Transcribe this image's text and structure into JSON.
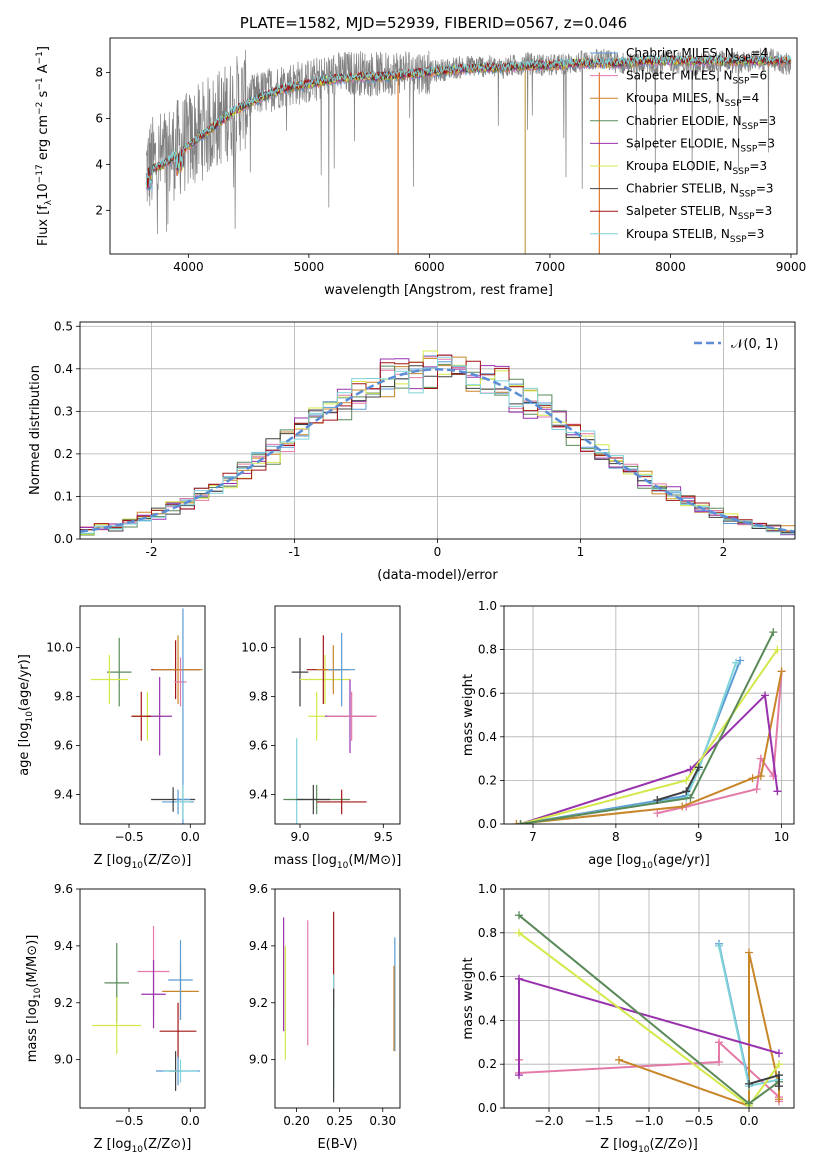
{
  "chart_data": [
    {
      "type": "line",
      "title": "PLATE=1582, MJD=52939, FIBERID=0567, z=0.046",
      "xlabel": "wavelength [Angstrom, rest frame]",
      "ylabel": "Flux [f_λ10^-17 erg cm^-2 s^-1 A^-1]",
      "xlim": [
        3350,
        9050
      ],
      "ylim": [
        0.1,
        9.5
      ],
      "x_ticks": [
        4000,
        5000,
        6000,
        7000,
        8000,
        9000
      ],
      "y_ticks": [
        2,
        4,
        6,
        8
      ],
      "legend": "top-right",
      "observed_color": "#808080",
      "observed_anchors": [
        [
          3650,
          3.8
        ],
        [
          3800,
          4.3
        ],
        [
          4000,
          5.0
        ],
        [
          4200,
          5.8
        ],
        [
          4400,
          6.6
        ],
        [
          4600,
          7.1
        ],
        [
          4800,
          7.5
        ],
        [
          5000,
          7.6
        ],
        [
          5200,
          7.9
        ],
        [
          5400,
          8.0
        ],
        [
          5600,
          7.9
        ],
        [
          5800,
          8.1
        ],
        [
          6000,
          8.0
        ],
        [
          6200,
          8.2
        ],
        [
          6400,
          8.3
        ],
        [
          6600,
          8.2
        ],
        [
          6800,
          8.4
        ],
        [
          7000,
          8.3
        ],
        [
          7200,
          8.4
        ],
        [
          7400,
          8.6
        ],
        [
          7600,
          8.4
        ],
        [
          7800,
          8.3
        ],
        [
          8000,
          8.5
        ],
        [
          8200,
          8.3
        ],
        [
          8400,
          8.5
        ],
        [
          8600,
          8.4
        ],
        [
          8800,
          8.6
        ],
        [
          9000,
          8.3
        ]
      ],
      "model_anchors": [
        [
          3650,
          3.7
        ],
        [
          3800,
          4.0
        ],
        [
          4000,
          4.8
        ],
        [
          4200,
          5.6
        ],
        [
          4400,
          6.4
        ],
        [
          4600,
          6.9
        ],
        [
          4800,
          7.3
        ],
        [
          5000,
          7.5
        ],
        [
          5200,
          7.7
        ],
        [
          5400,
          7.8
        ],
        [
          5600,
          7.8
        ],
        [
          5800,
          7.9
        ],
        [
          6000,
          8.0
        ],
        [
          6200,
          8.1
        ],
        [
          6400,
          8.2
        ],
        [
          6600,
          8.2
        ],
        [
          6800,
          8.3
        ],
        [
          7000,
          8.3
        ],
        [
          7200,
          8.4
        ],
        [
          7400,
          8.4
        ],
        [
          7600,
          8.4
        ],
        [
          7800,
          8.5
        ],
        [
          8000,
          8.5
        ],
        [
          8200,
          8.5
        ],
        [
          8400,
          8.5
        ],
        [
          8600,
          8.5
        ],
        [
          8800,
          8.5
        ],
        [
          9000,
          8.5
        ]
      ],
      "series": [
        {
          "name": "Chabrier MILES, N_SSP=4",
          "color": "#5b9bd5"
        },
        {
          "name": "Salpeter MILES, N_SSP=6",
          "color": "#e37aa8"
        },
        {
          "name": "Kroupa MILES, N_SSP=4",
          "color": "#c8862a"
        },
        {
          "name": "Chabrier ELODIE, N_SSP=3",
          "color": "#5a8a5a"
        },
        {
          "name": "Salpeter ELODIE, N_SSP=3",
          "color": "#9932ad"
        },
        {
          "name": "Kroupa ELODIE, N_SSP=3",
          "color": "#d4e84a"
        },
        {
          "name": "Chabrier STELIB, N_SSP=3",
          "color": "#404040"
        },
        {
          "name": "Salpeter STELIB, N_SSP=3",
          "color": "#a31515"
        },
        {
          "name": "Kroupa STELIB, N_SSP=3",
          "color": "#7fd3d9"
        }
      ]
    },
    {
      "type": "line",
      "xlabel": "(data-model)/error",
      "ylabel": "Normed distribution",
      "xlim": [
        -2.5,
        2.5
      ],
      "ylim": [
        0,
        0.51
      ],
      "x_ticks": [
        -2,
        -1,
        0,
        1,
        2
      ],
      "y_ticks": [
        0.0,
        0.1,
        0.2,
        0.3,
        0.4,
        0.5
      ],
      "grid": true,
      "legend": "top-right",
      "reference_curve": {
        "name": "𝒩(0, 1)",
        "color": "#5b8ed6",
        "mean": 0,
        "sigma": 1
      },
      "bin_width": 0.1,
      "hist_colors": [
        "#5b9bd5",
        "#e37aa8",
        "#c8862a",
        "#5a8a5a",
        "#9932ad",
        "#d4e84a",
        "#404040",
        "#a31515",
        "#7fd3d9"
      ]
    },
    {
      "type": "scatter",
      "xlabel": "Z [log10(Z/Z⊙)]",
      "ylabel": "age  [log10(age/yr)]",
      "xlim": [
        -0.9,
        0.12
      ],
      "ylim": [
        9.28,
        10.17
      ],
      "x_ticks": [
        -0.5,
        0.0
      ],
      "y_ticks": [
        9.4,
        9.6,
        9.8,
        10.0
      ],
      "points": [
        {
          "x": -0.58,
          "y": 9.9,
          "xerr": 0.1,
          "yerr": 0.14,
          "color": "#5a8a5a"
        },
        {
          "x": -0.66,
          "y": 9.87,
          "xerr": 0.15,
          "yerr": 0.1,
          "color": "#d4e84a"
        },
        {
          "x": -0.35,
          "y": 9.72,
          "xerr": 0.13,
          "yerr": 0.1,
          "color": "#d4e84a"
        },
        {
          "x": -0.25,
          "y": 9.72,
          "xerr": 0.1,
          "yerr": 0.16,
          "color": "#9932ad"
        },
        {
          "x": -0.4,
          "y": 9.72,
          "xerr": 0.08,
          "yerr": 0.1,
          "color": "#a31515"
        },
        {
          "x": -0.12,
          "y": 9.91,
          "xerr": 0.2,
          "yerr": 0.12,
          "color": "#a31515"
        },
        {
          "x": -0.1,
          "y": 9.91,
          "xerr": 0.2,
          "yerr": 0.14,
          "color": "#c8862a"
        },
        {
          "x": -0.08,
          "y": 9.86,
          "xerr": 0.05,
          "yerr": 0.1,
          "color": "#e37aa8"
        },
        {
          "x": -0.1,
          "y": 9.37,
          "xerr": 0.13,
          "yerr": 0.05,
          "color": "#5b9bd5"
        },
        {
          "x": -0.14,
          "y": 9.38,
          "xerr": 0.18,
          "yerr": 0.05,
          "color": "#404040"
        },
        {
          "x": -0.06,
          "y": 9.38,
          "xerr": 0.06,
          "yerr": 0.78,
          "color": "#5b9bd5"
        },
        {
          "x": -0.06,
          "y": 9.37,
          "xerr": 0.06,
          "yerr": 0.07,
          "color": "#7fd3d9"
        }
      ]
    },
    {
      "type": "scatter",
      "xlabel": "mass [log10(M/M⊙)]",
      "ylabel": "",
      "xlim": [
        8.85,
        9.6
      ],
      "ylim": [
        9.28,
        10.17
      ],
      "x_ticks": [
        9.0,
        9.5
      ],
      "y_ticks": [
        9.4,
        9.6,
        9.8,
        10.0
      ],
      "points": [
        {
          "x": 9.0,
          "y": 9.9,
          "xerr": 0.05,
          "yerr": 0.14,
          "color": "#404040"
        },
        {
          "x": 8.98,
          "y": 9.38,
          "xerr": 0.04,
          "yerr": 0.25,
          "color": "#7fd3d9"
        },
        {
          "x": 9.1,
          "y": 9.72,
          "xerr": 0.05,
          "yerr": 0.1,
          "color": "#d4e84a"
        },
        {
          "x": 9.15,
          "y": 9.87,
          "xerr": 0.15,
          "yerr": 0.1,
          "color": "#d4e84a"
        },
        {
          "x": 9.14,
          "y": 9.91,
          "xerr": 0.1,
          "yerr": 0.14,
          "color": "#a31515"
        },
        {
          "x": 9.2,
          "y": 9.91,
          "xerr": 0.1,
          "yerr": 0.1,
          "color": "#c8862a"
        },
        {
          "x": 9.25,
          "y": 9.91,
          "xerr": 0.08,
          "yerr": 0.15,
          "color": "#5b9bd5"
        },
        {
          "x": 9.3,
          "y": 9.72,
          "xerr": 0.15,
          "yerr": 0.15,
          "color": "#9932ad"
        },
        {
          "x": 9.31,
          "y": 9.72,
          "xerr": 0.15,
          "yerr": 0.1,
          "color": "#e37aa8"
        },
        {
          "x": 9.1,
          "y": 9.38,
          "xerr": 0.2,
          "yerr": 0.06,
          "color": "#5a8a5a"
        },
        {
          "x": 9.25,
          "y": 9.37,
          "xerr": 0.15,
          "yerr": 0.05,
          "color": "#a31515"
        },
        {
          "x": 9.08,
          "y": 9.38,
          "xerr": 0.1,
          "yerr": 0.06,
          "color": "#404040"
        }
      ]
    },
    {
      "type": "line",
      "xlabel": "age  [log10(age/yr)]",
      "ylabel": "mass weight",
      "xlim": [
        6.65,
        10.15
      ],
      "ylim": [
        0,
        1.0
      ],
      "x_ticks": [
        7,
        8,
        9,
        10
      ],
      "y_ticks": [
        0.0,
        0.2,
        0.4,
        0.6,
        0.8,
        1.0
      ],
      "grid": true,
      "series": [
        {
          "color": "#e37aa8",
          "x": [
            8.5,
            8.85,
            9.7,
            9.75,
            9.9,
            10.0
          ],
          "y": [
            0.05,
            0.08,
            0.16,
            0.3,
            0.22,
            0.7
          ]
        },
        {
          "color": "#c8862a",
          "x": [
            6.8,
            8.8,
            9.65,
            9.75,
            10.0
          ],
          "y": [
            0.0,
            0.08,
            0.21,
            0.22,
            0.7
          ]
        },
        {
          "color": "#5b9bd5",
          "x": [
            6.85,
            8.85,
            9.0,
            9.5
          ],
          "y": [
            0.0,
            0.13,
            0.26,
            0.75
          ]
        },
        {
          "color": "#7fd3d9",
          "x": [
            6.85,
            8.85,
            9.0,
            9.45
          ],
          "y": [
            0.0,
            0.12,
            0.25,
            0.74
          ]
        },
        {
          "color": "#9932ad",
          "x": [
            6.85,
            8.9,
            9.8,
            9.95
          ],
          "y": [
            0.0,
            0.25,
            0.59,
            0.15
          ]
        },
        {
          "color": "#d4e84a",
          "x": [
            6.85,
            8.85,
            9.95
          ],
          "y": [
            0.0,
            0.2,
            0.8
          ]
        },
        {
          "color": "#5a8a5a",
          "x": [
            6.85,
            8.9,
            9.9
          ],
          "y": [
            0.0,
            0.12,
            0.88
          ]
        },
        {
          "color": "#404040",
          "x": [
            8.5,
            8.85,
            9.0
          ],
          "y": [
            0.11,
            0.15,
            0.26
          ]
        }
      ]
    },
    {
      "type": "scatter",
      "xlabel": "Z [log10(Z/Z⊙)]",
      "ylabel": "mass [log10(M/M⊙)]",
      "xlim": [
        -0.9,
        0.12
      ],
      "ylim": [
        8.83,
        9.6
      ],
      "x_ticks": [
        -0.5,
        0.0
      ],
      "y_ticks": [
        9.0,
        9.2,
        9.4,
        9.6
      ],
      "points": [
        {
          "x": -0.6,
          "y": 9.27,
          "xerr": 0.1,
          "yerr": 0.14,
          "color": "#5a8a5a"
        },
        {
          "x": -0.6,
          "y": 9.12,
          "xerr": 0.2,
          "yerr": 0.1,
          "color": "#d4e84a"
        },
        {
          "x": -0.3,
          "y": 9.31,
          "xerr": 0.13,
          "yerr": 0.16,
          "color": "#e37aa8"
        },
        {
          "x": -0.3,
          "y": 9.23,
          "xerr": 0.1,
          "yerr": 0.12,
          "color": "#9932ad"
        },
        {
          "x": -0.08,
          "y": 9.24,
          "xerr": 0.15,
          "yerr": 0.1,
          "color": "#c8862a"
        },
        {
          "x": -0.1,
          "y": 9.1,
          "xerr": 0.15,
          "yerr": 0.1,
          "color": "#a31515"
        },
        {
          "x": -0.08,
          "y": 9.28,
          "xerr": 0.1,
          "yerr": 0.14,
          "color": "#5b9bd5"
        },
        {
          "x": -0.1,
          "y": 8.96,
          "xerr": 0.18,
          "yerr": 0.05,
          "color": "#5b9bd5"
        },
        {
          "x": -0.12,
          "y": 8.96,
          "xerr": 0.05,
          "yerr": 0.07,
          "color": "#404040"
        },
        {
          "x": -0.08,
          "y": 8.96,
          "xerr": 0.14,
          "yerr": 0.04,
          "color": "#7fd3d9"
        }
      ]
    },
    {
      "type": "scatter",
      "xlabel": "E(B-V)",
      "ylabel": "",
      "xlim": [
        0.175,
        0.32
      ],
      "ylim": [
        8.83,
        9.6
      ],
      "x_ticks": [
        0.2,
        0.25,
        0.3
      ],
      "y_ticks": [
        9.0,
        9.2,
        9.4,
        9.6
      ],
      "points": [
        {
          "x": 0.185,
          "y": 9.3,
          "yerr": 0.2,
          "color": "#9932ad"
        },
        {
          "x": 0.187,
          "y": 9.2,
          "yerr": 0.2,
          "color": "#d4e84a"
        },
        {
          "x": 0.213,
          "y": 9.27,
          "yerr": 0.22,
          "color": "#e37aa8"
        },
        {
          "x": 0.243,
          "y": 9.35,
          "yerr": 0.17,
          "color": "#a31515"
        },
        {
          "x": 0.243,
          "y": 9.1,
          "yerr": 0.2,
          "color": "#7fd3d9"
        },
        {
          "x": 0.243,
          "y": 9.05,
          "yerr": 0.2,
          "color": "#404040"
        },
        {
          "x": 0.314,
          "y": 9.23,
          "yerr": 0.2,
          "color": "#5b9bd5"
        },
        {
          "x": 0.313,
          "y": 9.18,
          "yerr": 0.15,
          "color": "#c8862a"
        }
      ]
    },
    {
      "type": "line",
      "xlabel": "Z [log10(Z/Z⊙)]",
      "ylabel": "mass weight",
      "xlim": [
        -2.45,
        0.45
      ],
      "ylim": [
        0,
        1.0
      ],
      "x_ticks": [
        -2.0,
        -1.5,
        -1.0,
        -0.5,
        0.0
      ],
      "y_ticks": [
        0.0,
        0.2,
        0.4,
        0.6,
        0.8,
        1.0
      ],
      "grid": true,
      "series": [
        {
          "color": "#e37aa8",
          "x": [
            -2.3,
            -2.3,
            -0.3,
            -0.3,
            0.3,
            0.3
          ],
          "y": [
            0.22,
            0.16,
            0.21,
            0.3,
            0.05,
            0.03
          ]
        },
        {
          "color": "#c8862a",
          "x": [
            -1.3,
            0.0,
            0.0,
            0.3,
            0.3
          ],
          "y": [
            0.22,
            0.01,
            0.71,
            0.1,
            0.04
          ]
        },
        {
          "color": "#5b9bd5",
          "x": [
            -0.3,
            0.0,
            0.3,
            0.3
          ],
          "y": [
            0.75,
            0.11,
            0.15,
            0.1
          ]
        },
        {
          "color": "#7fd3d9",
          "x": [
            -0.3,
            0.0,
            0.3
          ],
          "y": [
            0.74,
            0.1,
            0.13
          ]
        },
        {
          "color": "#9932ad",
          "x": [
            -2.3,
            -2.3,
            0.3
          ],
          "y": [
            0.15,
            0.59,
            0.25
          ]
        },
        {
          "color": "#d4e84a",
          "x": [
            -2.3,
            0.0,
            0.3
          ],
          "y": [
            0.8,
            0.01,
            0.2
          ]
        },
        {
          "color": "#5a8a5a",
          "x": [
            -2.3,
            0.0,
            0.3
          ],
          "y": [
            0.88,
            0.02,
            0.12
          ]
        },
        {
          "color": "#404040",
          "x": [
            0.0,
            0.3,
            0.3
          ],
          "y": [
            0.11,
            0.15,
            0.1
          ]
        }
      ]
    }
  ]
}
